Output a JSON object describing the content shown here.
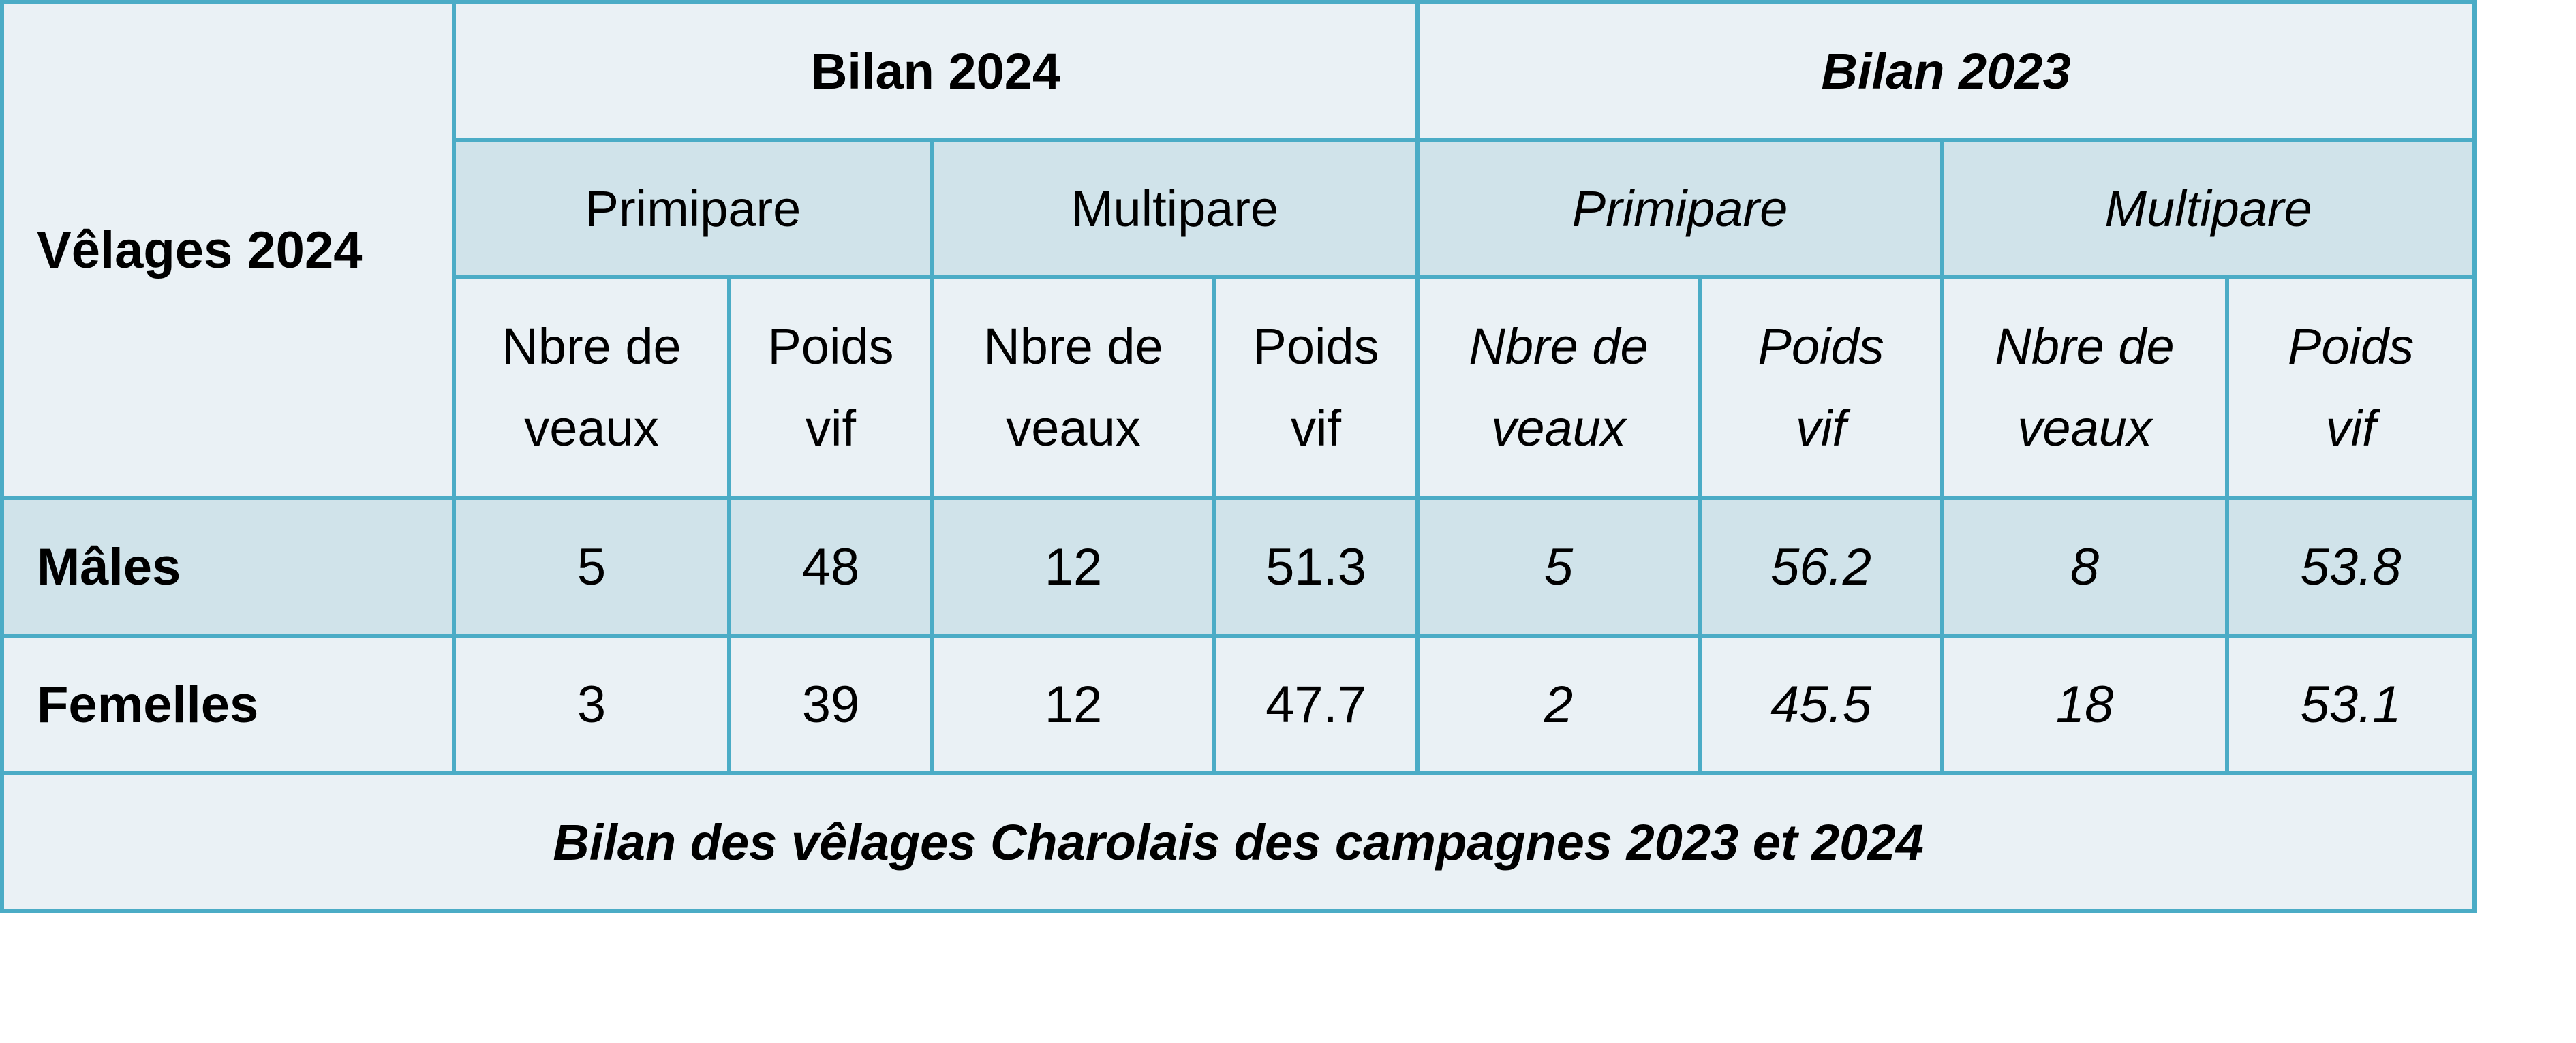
{
  "table": {
    "corner_label": "Vêlages 2024",
    "groups": [
      {
        "label": "Bilan 2024",
        "italic": false
      },
      {
        "label": "Bilan 2023",
        "italic": true
      }
    ],
    "parity": [
      "Primipare",
      "Multipare",
      "Primipare",
      "Multipare"
    ],
    "subheaders": [
      {
        "line1": "Nbre de",
        "line2": "veaux"
      },
      {
        "line1": "Poids",
        "line2": "vif"
      },
      {
        "line1": "Nbre de",
        "line2": "veaux"
      },
      {
        "line1": "Poids",
        "line2": "vif"
      },
      {
        "line1": "Nbre de",
        "line2": "veaux"
      },
      {
        "line1": "Poids",
        "line2": "vif"
      },
      {
        "line1": "Nbre de",
        "line2": "veaux"
      },
      {
        "line1": "Poids",
        "line2": "vif"
      }
    ],
    "rows": [
      {
        "label": "Mâles",
        "values": [
          "5",
          "48",
          "12",
          "51.3",
          "5",
          "56.2",
          "8",
          "53.8"
        ]
      },
      {
        "label": "Femelles",
        "values": [
          "3",
          "39",
          "12",
          "47.7",
          "2",
          "45.5",
          "18",
          "53.1"
        ]
      }
    ],
    "caption": "Bilan des vêlages Charolais des campagnes 2023 et 2024"
  }
}
